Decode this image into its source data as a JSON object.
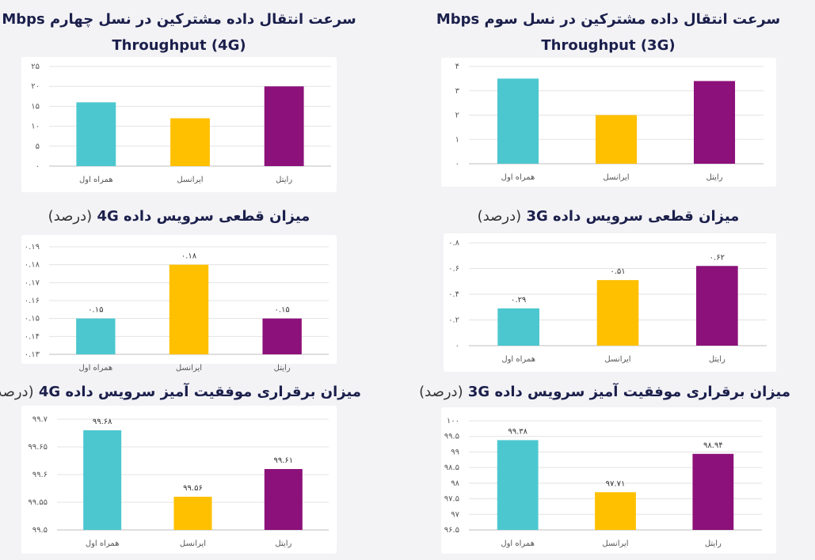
{
  "chart_data": [
    {
      "type": "bar",
      "title": "سرعت انتقال داده مشترکین در نسل چهارم Mbps",
      "subtitle": "Throughput (4G)",
      "subtitle_position": "below",
      "categories": [
        "همراه اول",
        "ایرانسل",
        "رایتل"
      ],
      "values": [
        16,
        12,
        20
      ],
      "colors": [
        "#4cc7cf",
        "#ffc000",
        "#8c117a"
      ],
      "ylim": [
        0,
        25
      ],
      "yticks": [
        {
          "value": 0,
          "label": "۰"
        },
        {
          "value": 5,
          "label": "۵"
        },
        {
          "value": 10,
          "label": "۱۰"
        },
        {
          "value": 15,
          "label": "۱۵"
        },
        {
          "value": 20,
          "label": "۲۰"
        },
        {
          "value": 25,
          "label": "۲۵"
        }
      ],
      "grid": true
    },
    {
      "type": "bar",
      "title": "سرعت انتقال داده مشترکین در نسل سوم Mbps",
      "subtitle": "Throughput (3G)",
      "subtitle_position": "below",
      "categories": [
        "همراه اول",
        "ایرانسل",
        "رایتل"
      ],
      "values": [
        3.5,
        2.0,
        3.4
      ],
      "colors": [
        "#4cc7cf",
        "#ffc000",
        "#8c117a"
      ],
      "ylim": [
        0,
        4
      ],
      "yticks": [
        {
          "value": 0,
          "label": "۰"
        },
        {
          "value": 1,
          "label": "۱"
        },
        {
          "value": 2,
          "label": "۲"
        },
        {
          "value": 3,
          "label": "۳"
        },
        {
          "value": 4,
          "label": "۴"
        }
      ],
      "grid": true
    },
    {
      "type": "bar",
      "title": "میزان قطعی سرویس داده 4G",
      "subtitle": "(درصد)",
      "subtitle_position": "inline",
      "categories": [
        "همراه اول",
        "ایرانسل",
        "رایتل"
      ],
      "values": [
        0.15,
        0.18,
        0.15
      ],
      "value_labels": [
        "۰.۱۵",
        "۰.۱۸",
        "۰.۱۵"
      ],
      "colors": [
        "#4cc7cf",
        "#ffc000",
        "#8c117a"
      ],
      "ylim": [
        0.13,
        0.19
      ],
      "yticks": [
        {
          "value": 0.13,
          "label": "۰.۱۳"
        },
        {
          "value": 0.14,
          "label": "۰.۱۴"
        },
        {
          "value": 0.15,
          "label": "۰.۱۵"
        },
        {
          "value": 0.16,
          "label": "۰.۱۶"
        },
        {
          "value": 0.17,
          "label": "۰.۱۷"
        },
        {
          "value": 0.18,
          "label": "۰.۱۸"
        },
        {
          "value": 0.19,
          "label": "۰.۱۹"
        }
      ],
      "grid": true
    },
    {
      "type": "bar",
      "title": "میزان قطعی سرویس داده 3G",
      "subtitle": "(درصد)",
      "subtitle_position": "inline",
      "categories": [
        "همراه اول",
        "ایرانسل",
        "رایتل"
      ],
      "values": [
        0.29,
        0.51,
        0.62
      ],
      "value_labels": [
        "۰.۲۹",
        "۰.۵۱",
        "۰.۶۲"
      ],
      "colors": [
        "#4cc7cf",
        "#ffc000",
        "#8c117a"
      ],
      "ylim": [
        0,
        0.8
      ],
      "yticks": [
        {
          "value": 0,
          "label": "۰"
        },
        {
          "value": 0.2,
          "label": "۰.۲"
        },
        {
          "value": 0.4,
          "label": "۰.۴"
        },
        {
          "value": 0.6,
          "label": "۰.۶"
        },
        {
          "value": 0.8,
          "label": "۰.۸"
        }
      ],
      "grid": true
    },
    {
      "type": "bar",
      "title": "میزان برقراری موفقیت آمیز سرویس داده 4G",
      "subtitle": "(درصد)",
      "subtitle_position": "inline",
      "categories": [
        "همراه اول",
        "ایرانسل",
        "رایتل"
      ],
      "values": [
        99.68,
        99.56,
        99.61
      ],
      "value_labels": [
        "۹۹.۶۸",
        "۹۹.۵۶",
        "۹۹.۶۱"
      ],
      "colors": [
        "#4cc7cf",
        "#ffc000",
        "#8c117a"
      ],
      "ylim": [
        99.5,
        99.7
      ],
      "yticks": [
        {
          "value": 99.5,
          "label": "۹۹.۵"
        },
        {
          "value": 99.55,
          "label": "۹۹.۵۵"
        },
        {
          "value": 99.6,
          "label": "۹۹.۶"
        },
        {
          "value": 99.65,
          "label": "۹۹.۶۵"
        },
        {
          "value": 99.7,
          "label": "۹۹.۷"
        }
      ],
      "grid": true
    },
    {
      "type": "bar",
      "title": "میزان برقراری موفقیت آمیز سرویس داده 3G",
      "subtitle": "(درصد)",
      "subtitle_position": "inline",
      "categories": [
        "همراه اول",
        "ایرانسل",
        "رایتل"
      ],
      "values": [
        99.38,
        97.71,
        98.94
      ],
      "value_labels": [
        "۹۹.۳۸",
        "۹۷.۷۱",
        "۹۸.۹۴"
      ],
      "colors": [
        "#4cc7cf",
        "#ffc000",
        "#8c117a"
      ],
      "ylim": [
        96.5,
        100
      ],
      "yticks": [
        {
          "value": 96.5,
          "label": "۹۶.۵"
        },
        {
          "value": 97,
          "label": "۹۷"
        },
        {
          "value": 97.5,
          "label": "۹۷.۵"
        },
        {
          "value": 98,
          "label": "۹۸"
        },
        {
          "value": 98.5,
          "label": "۹۸.۵"
        },
        {
          "value": 99,
          "label": "۹۹"
        },
        {
          "value": 99.5,
          "label": "۹۹.۵"
        },
        {
          "value": 100,
          "label": "۱۰۰"
        }
      ],
      "grid": true
    }
  ]
}
